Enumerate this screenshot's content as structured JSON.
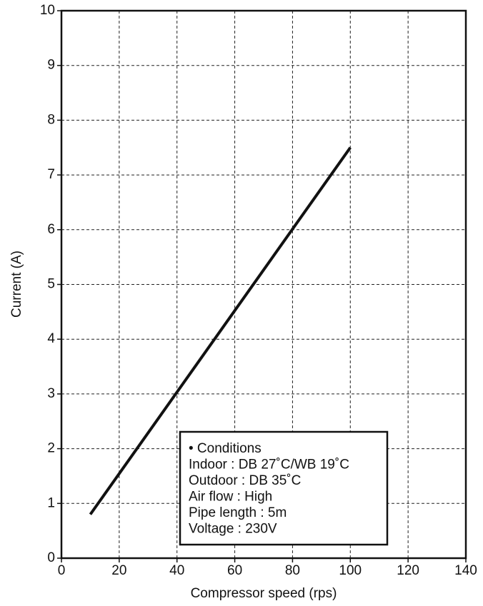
{
  "chart_data": {
    "type": "line",
    "x_label": "Compressor speed (rps)",
    "y_label": "Current (A)",
    "x": [
      10,
      100
    ],
    "series": [
      {
        "color": "#111111",
        "values": [
          0.8,
          7.5
        ]
      }
    ],
    "xlim": [
      0,
      140
    ],
    "xticks": [
      0,
      20,
      40,
      60,
      80,
      100,
      120,
      140
    ],
    "ylim": [
      0,
      10
    ],
    "yticks": [
      0,
      1,
      2,
      3,
      4,
      5,
      6,
      7,
      8,
      9,
      10
    ],
    "grid": true,
    "annotation": [
      "• Conditions",
      "Indoor : DB 27˚C/WB 19˚C",
      "Outdoor : DB 35˚C",
      "Air flow : High",
      "Pipe length : 5m",
      "Voltage : 230V"
    ]
  }
}
